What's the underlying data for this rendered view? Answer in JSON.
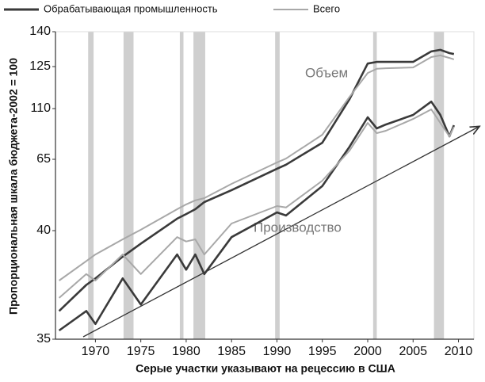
{
  "chart_data": {
    "type": "line",
    "y_axis_label": "Пропорциональная шкала бюджета-2002 = 100",
    "x_axis_label": "Серые участки указывают на рецессию в США",
    "annotations": [
      "Объем",
      "Производство"
    ],
    "yscale": "piecewise",
    "ylim": [
      35,
      140
    ],
    "yticks": [
      35,
      40,
      65,
      110,
      125,
      140
    ],
    "xlim": [
      1965.6,
      2011.7
    ],
    "xticks": [
      1970,
      1975,
      1980,
      1985,
      1990,
      1995,
      2000,
      2005,
      2010
    ],
    "recessions": [
      [
        1969.2,
        1969.8
      ],
      [
        1973.1,
        1974.2
      ],
      [
        1979.3,
        1979.7
      ],
      [
        1980.8,
        1982.1
      ],
      [
        1989.8,
        1990.3
      ],
      [
        2000.6,
        2001.0
      ],
      [
        2007.3,
        2008.4
      ]
    ],
    "recession_color": "#cfcfcf",
    "x": [
      1966,
      1969,
      1970,
      1973,
      1975,
      1979,
      1980,
      1981,
      1982,
      1985,
      1990,
      1991,
      1995,
      1998,
      2000,
      2001,
      2002,
      2005,
      2007,
      2008,
      2009,
      2009.5
    ],
    "series": [
      {
        "name": "Обрабатывающая промышленность",
        "color": "#3a3a3a",
        "values": [
          36.3,
          37.5,
          37.8,
          38.8,
          39.4,
          44.2,
          45.8,
          47.5,
          50.0,
          54.2,
          61.7,
          63.1,
          79.7,
          113.4,
          126.3,
          127.0,
          127.0,
          127.0,
          131.5,
          132.2,
          130.8,
          130.4
        ],
        "production_values": [
          35.4,
          36.3,
          35.7,
          37.8,
          36.6,
          38.9,
          38.2,
          38.9,
          38.0,
          39.7,
          46.4,
          45.3,
          55.6,
          76.2,
          102.3,
          92.4,
          95.9,
          104.4,
          112.5,
          104.4,
          85.4,
          95.2
        ]
      },
      {
        "name": "Всего",
        "color": "#a8a8a8",
        "values": [
          37.7,
          38.6,
          38.9,
          39.6,
          40.3,
          47.5,
          49.2,
          50.6,
          51.4,
          56.4,
          63.9,
          65.6,
          86.8,
          114.2,
          122.7,
          124.2,
          124.4,
          124.7,
          129.1,
          129.8,
          128.7,
          128.1
        ],
        "production_values": [
          36.9,
          38.0,
          37.7,
          38.9,
          38.0,
          39.7,
          39.5,
          39.6,
          38.9,
          42.5,
          48.6,
          48.1,
          57.5,
          72.7,
          97.3,
          88.2,
          90.3,
          100.8,
          109.3,
          97.3,
          85.4,
          93.8
        ]
      }
    ]
  }
}
